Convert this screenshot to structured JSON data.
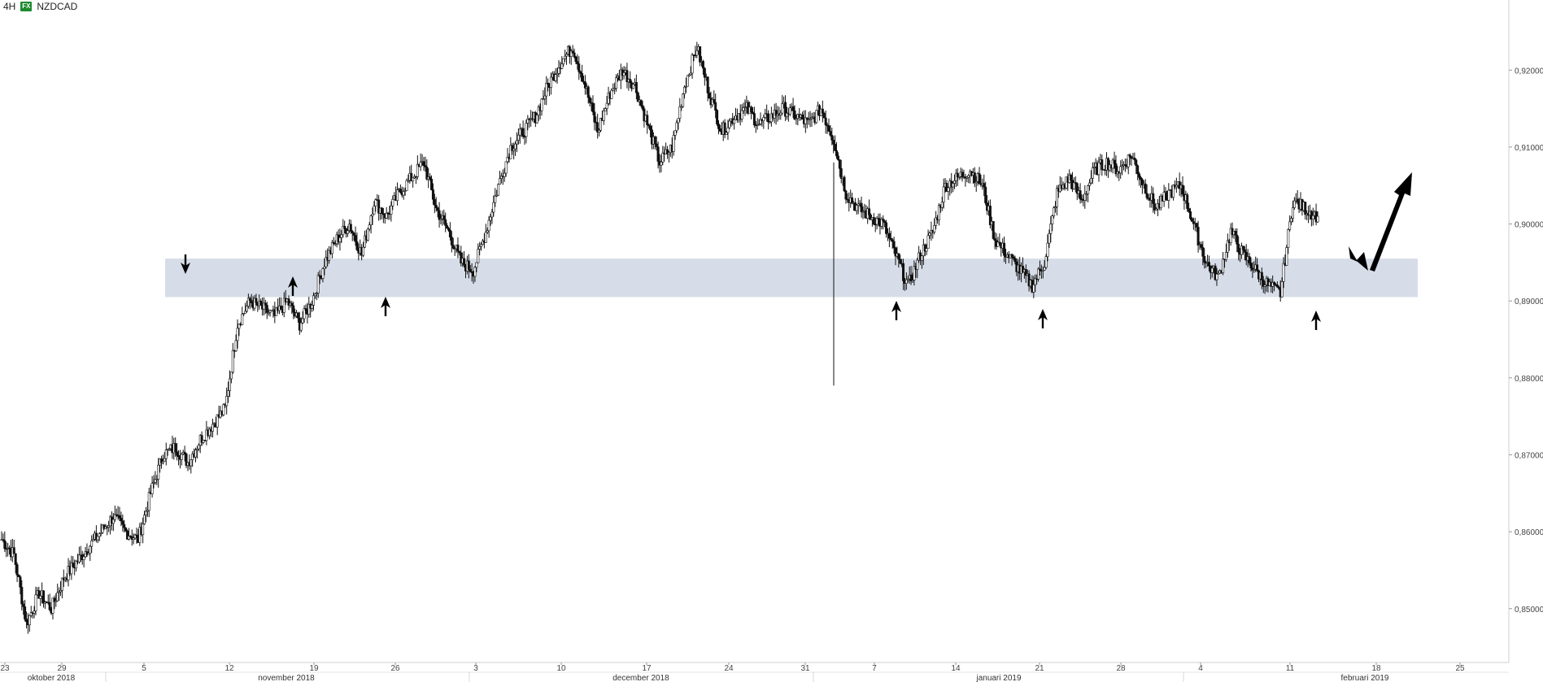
{
  "header": {
    "timeframe": "4H",
    "badge": "FX",
    "symbol": "NZDCAD"
  },
  "chart_data": {
    "type": "candlestick",
    "symbol": "NZDCAD",
    "timeframe": "4H",
    "ylim": [
      0.843,
      0.927
    ],
    "y_ticks": [
      "0,85000",
      "0,86000",
      "0,87000",
      "0,88000",
      "0,89000",
      "0,90000",
      "0,91000",
      "0,92000"
    ],
    "x_day_ticks": [
      "23",
      "29",
      "5",
      "12",
      "19",
      "26",
      "3",
      "10",
      "17",
      "24",
      "31",
      "7",
      "14",
      "21",
      "28",
      "4",
      "11",
      "18",
      "25"
    ],
    "x_month_labels": [
      "oktober 2018",
      "november 2018",
      "december 2018",
      "januari 2019",
      "februari 2019"
    ],
    "series_close_trace": [
      [
        0.859,
        0.857,
        0.848,
        0.852,
        0.85,
        0.854,
        0.856,
        0.858,
        0.86,
        0.862,
        0.86,
        0.859
      ],
      [
        0.865,
        0.87,
        0.871,
        0.869,
        0.872,
        0.874,
        0.876,
        0.887,
        0.89,
        0.889,
        0.888,
        0.89
      ],
      [
        0.887,
        0.89,
        0.895,
        0.898,
        0.9,
        0.896,
        0.903,
        0.901,
        0.904,
        0.906,
        0.908,
        0.902
      ],
      [
        0.899,
        0.895,
        0.894,
        0.899,
        0.905,
        0.91,
        0.912,
        0.914,
        0.918,
        0.921,
        0.923,
        0.918
      ],
      [
        0.912,
        0.917,
        0.92,
        0.918,
        0.913,
        0.908,
        0.91,
        0.918,
        0.923,
        0.917,
        0.912,
        0.914
      ],
      [
        0.915,
        0.913,
        0.914,
        0.915,
        0.914,
        0.913,
        0.915,
        0.911,
        0.904,
        0.902,
        0.901,
        0.9
      ],
      [
        0.896,
        0.892,
        0.896,
        0.899,
        0.905,
        0.906,
        0.907,
        0.905,
        0.898,
        0.896,
        0.894,
        0.892
      ],
      [
        0.895,
        0.904,
        0.906,
        0.903,
        0.907,
        0.908,
        0.907,
        0.909,
        0.905,
        0.902,
        0.904,
        0.905
      ],
      [
        0.9,
        0.895,
        0.893,
        0.899,
        0.896,
        0.894,
        0.892,
        0.891,
        0.903,
        0.902,
        0.901
      ]
    ],
    "spike_low": 0.879,
    "support_zone": {
      "top": 0.8955,
      "bottom": 0.8905
    },
    "annotations": {
      "down_arrows": 1,
      "up_arrows": 6,
      "forecast_arrow": "up"
    },
    "grid": false
  }
}
